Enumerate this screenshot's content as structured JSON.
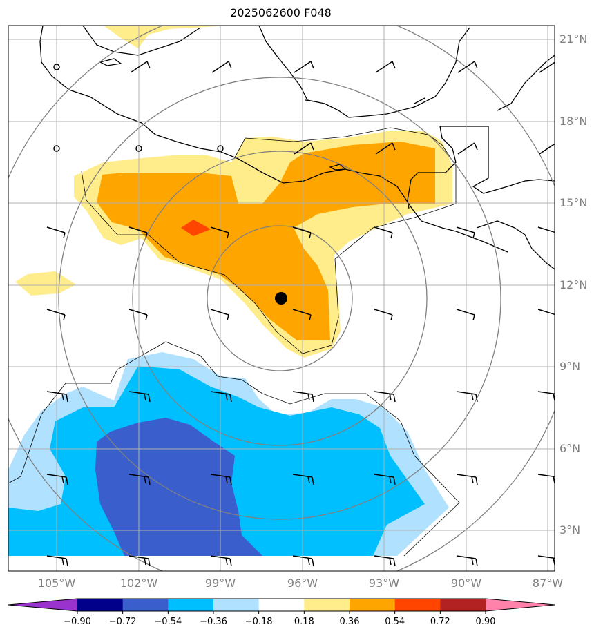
{
  "title": "2025062600 F048",
  "colors": {
    "water": "#ffffff",
    "coast": "#000000",
    "grid": "#b0b0b0",
    "range_ring": "#808080",
    "tick_label": "#808080",
    "center_marker": "#000000"
  },
  "map": {
    "lon_ticks": [
      "105°W",
      "102°W",
      "99°W",
      "96°W",
      "93°W",
      "90°W",
      "87°W"
    ],
    "lat_ticks": [
      "21°N",
      "18°N",
      "15°N",
      "12°N",
      "9°N",
      "6°N",
      "3°N"
    ],
    "lon_range": [
      -106.5,
      -86.8
    ],
    "lat_range": [
      1.5,
      21.5
    ],
    "storm_center": {
      "lon": -96.75,
      "lat": 11.5
    },
    "range_ring_count": 4
  },
  "colorbar": {
    "levels": [
      "−0.90",
      "−0.72",
      "−0.54",
      "−0.36",
      "−0.18",
      "0.18",
      "0.36",
      "0.54",
      "0.72",
      "0.90"
    ],
    "colors": [
      "#9a32cd",
      "#00008b",
      "#3a5fcd",
      "#00bfff",
      "#b0e2ff",
      "#ffffff",
      "#ffec8b",
      "#ffa500",
      "#ff4500",
      "#b22222",
      "#ff82ab"
    ],
    "extend": "both"
  },
  "fill_colors": {
    "pos_1": "#ffec8b",
    "pos_2": "#ffa500",
    "pos_3": "#ff4500",
    "neg_1": "#b0e2ff",
    "neg_2": "#00bfff",
    "neg_3": "#3a5fcd"
  }
}
